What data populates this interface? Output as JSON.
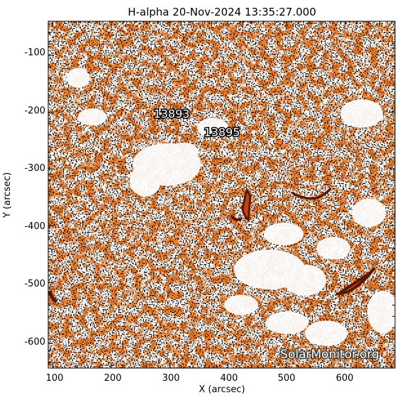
{
  "title": "H-alpha 20-Nov-2024 13:35:27.000",
  "axes": {
    "xlabel": "X (arcsec)",
    "ylabel": "Y (arcsec)",
    "x_ticks": [
      100,
      200,
      300,
      400,
      500,
      600
    ],
    "y_ticks": [
      -100,
      -200,
      -300,
      -400,
      -500,
      -600
    ],
    "xlim": [
      92,
      686
    ],
    "ylim": [
      -651,
      -40
    ]
  },
  "annotations": {
    "region_1": "13893",
    "region_2": "13895"
  },
  "watermark": "SolarMonitor.org",
  "colors": {
    "light": "#ffffff",
    "mid": "#f0822d",
    "deep": "#c2430c",
    "dark": "#5a1804",
    "speckle": "#1a0d05"
  }
}
